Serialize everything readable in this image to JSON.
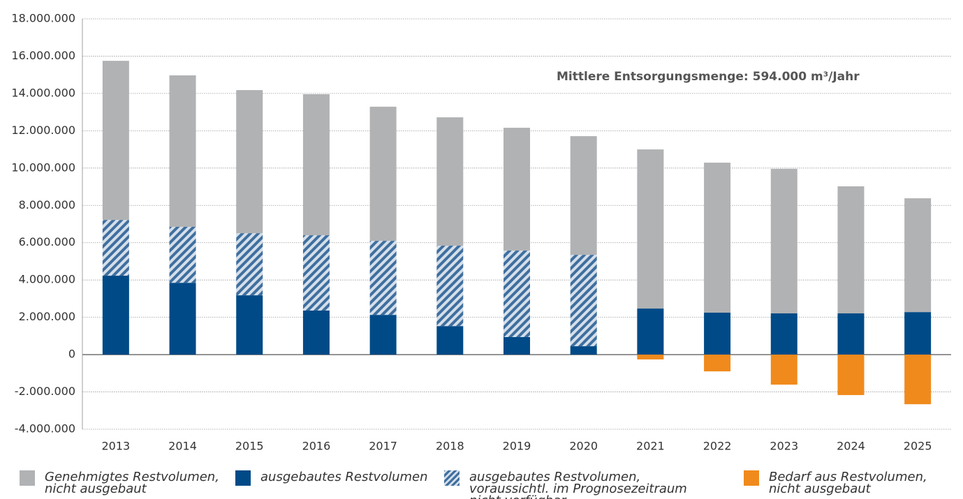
{
  "chart_data": {
    "type": "bar",
    "stacked": true,
    "annotation": "Mittlere Entsorgungsmenge: 594.000 m³/Jahr",
    "categories": [
      "2013",
      "2014",
      "2015",
      "2016",
      "2017",
      "2018",
      "2019",
      "2020",
      "2021",
      "2022",
      "2023",
      "2024",
      "2025"
    ],
    "series": [
      {
        "name": "Genehmigtes Restvolumen, nicht ausgebaut",
        "color": "#b1b2b4",
        "values": [
          8530000,
          8120000,
          7670000,
          7560000,
          7190000,
          6880000,
          6580000,
          6360000,
          8530000,
          8040000,
          7750000,
          6810000,
          6100000
        ]
      },
      {
        "name": "ausgebautes Restvolumen",
        "color": "#004a87",
        "values": [
          4230000,
          3850000,
          3180000,
          2360000,
          2130000,
          1530000,
          940000,
          450000,
          2470000,
          2250000,
          2210000,
          2210000,
          2280000
        ]
      },
      {
        "name": "ausgebautes Restvolumen, voraussichtl. im Prognosezeitraum nicht verfügbar",
        "color": "#3f6f9f",
        "hatched": true,
        "values": [
          2990000,
          3000000,
          3330000,
          4040000,
          3970000,
          4310000,
          4640000,
          4900000,
          null,
          null,
          null,
          null,
          null
        ]
      },
      {
        "name": "Bedarf aus Restvolumen, nicht ausgebaut",
        "color": "#f08a1c",
        "values": [
          null,
          null,
          null,
          null,
          null,
          null,
          null,
          null,
          -260000,
          -900000,
          -1610000,
          -2170000,
          -2660000
        ]
      }
    ],
    "ylim": [
      -4000000,
      18000000
    ],
    "yticks": [
      {
        "value": -4000000,
        "label": "-4.000.000"
      },
      {
        "value": -2000000,
        "label": "-2.000.000"
      },
      0,
      {
        "value": 2000000,
        "label": "2.000.000"
      },
      {
        "value": 4000000,
        "label": "4.000.000"
      },
      {
        "value": 6000000,
        "label": "6.000.000"
      },
      {
        "value": 8000000,
        "label": "8.000.000"
      },
      {
        "value": 10000000,
        "label": "10.000.000"
      },
      {
        "value": 12000000,
        "label": "12.000.000"
      },
      {
        "value": 14000000,
        "label": "14.000.000"
      },
      {
        "value": 16000000,
        "label": "16.000.000"
      },
      {
        "value": 18000000,
        "label": "18.000.000"
      }
    ],
    "grid": true
  }
}
